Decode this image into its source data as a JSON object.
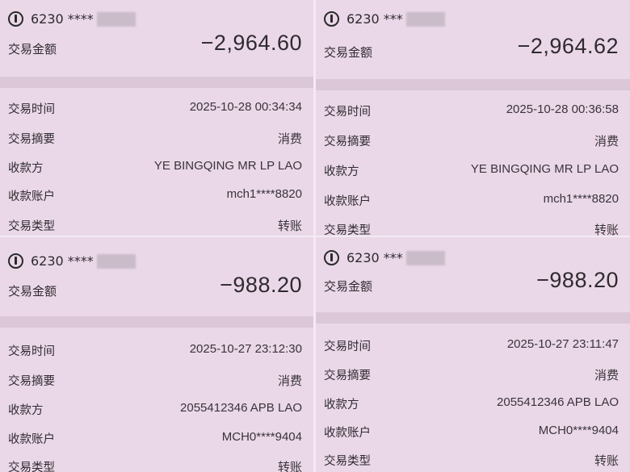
{
  "labels": {
    "amount": "交易金额",
    "time": "交易时间",
    "summary": "交易摘要",
    "payee": "收款方",
    "account": "收款账户",
    "type": "交易类型"
  },
  "receipts": [
    {
      "card": "6230 ****",
      "amount": "−2,964.60",
      "time": "2025-10-28 00:34:34",
      "summary": "消费",
      "payee": "YE BINGQING MR LP LAO",
      "account": "mch1****8820",
      "type": "转账"
    },
    {
      "card": "6230 ***",
      "amount": "−2,964.62",
      "time": "2025-10-28 00:36:58",
      "summary": "消费",
      "payee": "YE BINGQING MR LP LAO",
      "account": "mch1****8820",
      "type": "转账"
    },
    {
      "card": "6230 ****",
      "amount": "−988.20",
      "time": "2025-10-27 23:12:30",
      "summary": "消费",
      "payee": "2055412346 APB LAO",
      "account": "MCH0****9404",
      "type": "转账"
    },
    {
      "card": "6230 ***",
      "amount": "−988.20",
      "time": "2025-10-27 23:11:47",
      "summary": "消费",
      "payee": "2055412346 APB LAO",
      "account": "MCH0****9404",
      "type": "转账"
    }
  ]
}
